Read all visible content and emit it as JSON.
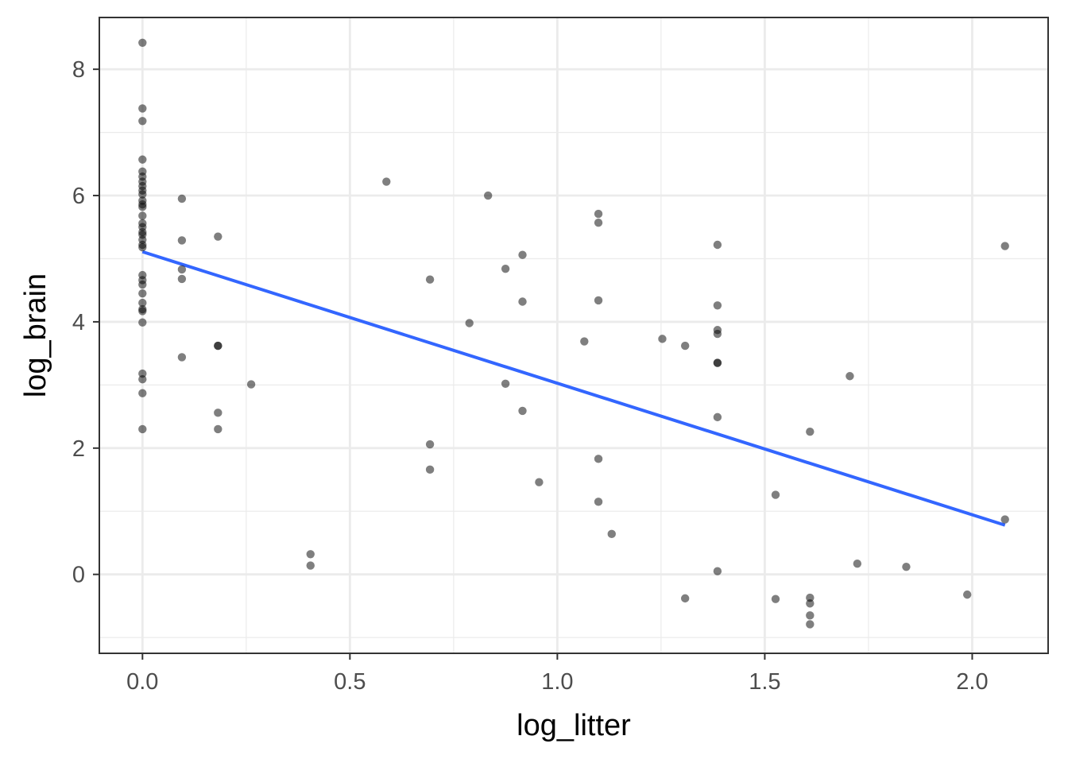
{
  "chart_data": {
    "type": "scatter",
    "title": "",
    "xlabel": "log_litter",
    "ylabel": "log_brain",
    "xlim": [
      -0.104,
      2.183
    ],
    "ylim": [
      -1.25,
      8.82
    ],
    "x_ticks": [
      0.0,
      0.5,
      1.0,
      1.5,
      2.0
    ],
    "x_tick_labels": [
      "0.0",
      "0.5",
      "1.0",
      "1.5",
      "2.0"
    ],
    "y_ticks": [
      0,
      2,
      4,
      6,
      8
    ],
    "y_tick_labels": [
      "0",
      "2",
      "4",
      "6",
      "8"
    ],
    "grid": true,
    "point_color": "#000000",
    "point_opacity": 0.5,
    "points": [
      {
        "x": 0.0,
        "y": 8.42
      },
      {
        "x": 0.0,
        "y": 7.38
      },
      {
        "x": 0.0,
        "y": 7.18
      },
      {
        "x": 0.0,
        "y": 6.57
      },
      {
        "x": 0.0,
        "y": 6.38
      },
      {
        "x": 0.0,
        "y": 6.3
      },
      {
        "x": 0.0,
        "y": 6.22
      },
      {
        "x": 0.0,
        "y": 6.15
      },
      {
        "x": 0.0,
        "y": 6.08
      },
      {
        "x": 0.0,
        "y": 6.02
      },
      {
        "x": 0.0,
        "y": 5.92
      },
      {
        "x": 0.0,
        "y": 5.86
      },
      {
        "x": 0.0,
        "y": 5.82
      },
      {
        "x": 0.0,
        "y": 5.68
      },
      {
        "x": 0.0,
        "y": 5.56
      },
      {
        "x": 0.0,
        "y": 5.5
      },
      {
        "x": 0.0,
        "y": 5.42
      },
      {
        "x": 0.0,
        "y": 5.38
      },
      {
        "x": 0.0,
        "y": 5.3
      },
      {
        "x": 0.0,
        "y": 5.22
      },
      {
        "x": 0.0,
        "y": 5.18
      },
      {
        "x": 0.0,
        "y": 4.74
      },
      {
        "x": 0.0,
        "y": 4.66
      },
      {
        "x": 0.0,
        "y": 4.59
      },
      {
        "x": 0.0,
        "y": 4.45
      },
      {
        "x": 0.0,
        "y": 4.3
      },
      {
        "x": 0.0,
        "y": 4.2
      },
      {
        "x": 0.0,
        "y": 4.17
      },
      {
        "x": 0.0,
        "y": 3.99
      },
      {
        "x": 0.0,
        "y": 3.18
      },
      {
        "x": 0.0,
        "y": 3.09
      },
      {
        "x": 0.0,
        "y": 2.87
      },
      {
        "x": 0.0,
        "y": 2.3
      },
      {
        "x": 0.095,
        "y": 5.95
      },
      {
        "x": 0.095,
        "y": 5.29
      },
      {
        "x": 0.095,
        "y": 4.83
      },
      {
        "x": 0.095,
        "y": 4.68
      },
      {
        "x": 0.095,
        "y": 3.44
      },
      {
        "x": 0.182,
        "y": 5.35
      },
      {
        "x": 0.182,
        "y": 3.62
      },
      {
        "x": 0.182,
        "y": 3.62
      },
      {
        "x": 0.182,
        "y": 2.56
      },
      {
        "x": 0.182,
        "y": 2.3
      },
      {
        "x": 0.262,
        "y": 3.01
      },
      {
        "x": 0.405,
        "y": 0.32
      },
      {
        "x": 0.405,
        "y": 0.14
      },
      {
        "x": 0.588,
        "y": 6.22
      },
      {
        "x": 0.693,
        "y": 4.67
      },
      {
        "x": 0.693,
        "y": 2.06
      },
      {
        "x": 0.693,
        "y": 1.66
      },
      {
        "x": 0.788,
        "y": 3.98
      },
      {
        "x": 0.833,
        "y": 6.0
      },
      {
        "x": 0.875,
        "y": 4.84
      },
      {
        "x": 0.875,
        "y": 3.02
      },
      {
        "x": 0.916,
        "y": 5.06
      },
      {
        "x": 0.916,
        "y": 4.32
      },
      {
        "x": 0.916,
        "y": 2.59
      },
      {
        "x": 0.956,
        "y": 1.46
      },
      {
        "x": 1.065,
        "y": 3.69
      },
      {
        "x": 1.099,
        "y": 5.71
      },
      {
        "x": 1.099,
        "y": 5.57
      },
      {
        "x": 1.099,
        "y": 4.34
      },
      {
        "x": 1.099,
        "y": 1.83
      },
      {
        "x": 1.099,
        "y": 1.15
      },
      {
        "x": 1.131,
        "y": 0.64
      },
      {
        "x": 1.253,
        "y": 3.73
      },
      {
        "x": 1.308,
        "y": 3.62
      },
      {
        "x": 1.308,
        "y": -0.38
      },
      {
        "x": 1.386,
        "y": 5.22
      },
      {
        "x": 1.386,
        "y": 4.26
      },
      {
        "x": 1.386,
        "y": 3.87
      },
      {
        "x": 1.386,
        "y": 3.81
      },
      {
        "x": 1.386,
        "y": 3.35
      },
      {
        "x": 1.386,
        "y": 3.35
      },
      {
        "x": 1.386,
        "y": 2.49
      },
      {
        "x": 1.386,
        "y": 0.05
      },
      {
        "x": 1.526,
        "y": 1.26
      },
      {
        "x": 1.526,
        "y": -0.39
      },
      {
        "x": 1.609,
        "y": 2.26
      },
      {
        "x": 1.609,
        "y": -0.37
      },
      {
        "x": 1.609,
        "y": -0.46
      },
      {
        "x": 1.609,
        "y": -0.65
      },
      {
        "x": 1.609,
        "y": -0.79
      },
      {
        "x": 1.705,
        "y": 3.14
      },
      {
        "x": 1.723,
        "y": 0.17
      },
      {
        "x": 1.841,
        "y": 0.12
      },
      {
        "x": 1.988,
        "y": -0.32
      },
      {
        "x": 2.079,
        "y": 5.2
      },
      {
        "x": 2.079,
        "y": 0.87
      }
    ],
    "trend_line": {
      "color": "#3366ff",
      "x": [
        0.0,
        2.079
      ],
      "y": [
        5.11,
        0.78
      ]
    }
  }
}
